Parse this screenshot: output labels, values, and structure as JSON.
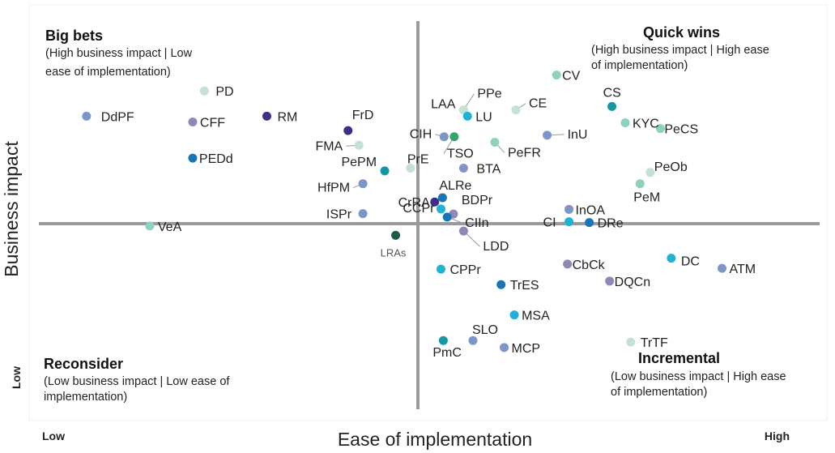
{
  "chart_data": {
    "type": "scatter",
    "xlabel": "Ease of implementation",
    "ylabel": "Business impact",
    "x_low_label": "Low",
    "x_high_label": "High",
    "y_low_label": "Low",
    "xlim": [
      0,
      100
    ],
    "ylim": [
      0,
      100
    ],
    "grid": false,
    "quadrants": {
      "top_left": {
        "title": "Big bets",
        "subtitle_lines": [
          "(High business impact | Low",
          "ease of implementation)"
        ]
      },
      "top_right": {
        "title": "Quick wins",
        "subtitle_lines": [
          "(High business impact | High ease",
          "of implementation)"
        ]
      },
      "bottom_left": {
        "title": "Reconsider",
        "subtitle_lines": [
          "(Low business impact | Low ease of",
          "implementation)"
        ]
      },
      "bottom_right": {
        "title": "Incremental",
        "subtitle_lines": [
          "(Low business impact | High ease",
          "of implementation)"
        ]
      }
    },
    "colors": {
      "navy": "#3f2f86",
      "periwinkle": "#7c96c8",
      "purple_gray": "#8e88b6",
      "teal": "#1498a6",
      "cyan": "#1fb2d6",
      "ocean": "#1a75b8",
      "mint": "#8fd1c0",
      "pale_mint": "#c3e2d3",
      "green": "#3aa36a",
      "dark_green": "#1f5a45",
      "axis": "#9a9a9a"
    },
    "points": [
      {
        "label": "PD",
        "x": 21.2,
        "y": 82.0,
        "color": "#c3e2d3"
      },
      {
        "label": "DdPF",
        "x": 6.1,
        "y": 75.5,
        "color": "#7c96c8"
      },
      {
        "label": "CFF",
        "x": 19.7,
        "y": 74.0,
        "color": "#8e88b6"
      },
      {
        "label": "RM",
        "x": 29.2,
        "y": 75.5,
        "color": "#3f2f86"
      },
      {
        "label": "PEDd",
        "x": 19.7,
        "y": 64.7,
        "color": "#1a75b8"
      },
      {
        "label": "FrD",
        "x": 39.6,
        "y": 71.8,
        "color": "#3f2f86"
      },
      {
        "label": "FMA",
        "x": 41.0,
        "y": 68.0,
        "color": "#c3e2d3"
      },
      {
        "label": "PePM",
        "x": 44.3,
        "y": 61.4,
        "color": "#1498a6"
      },
      {
        "label": "HfPM",
        "x": 41.5,
        "y": 58.1,
        "color": "#7c96c8"
      },
      {
        "label": "ISPr",
        "x": 41.5,
        "y": 50.4,
        "color": "#7c96c8"
      },
      {
        "label": "VeA",
        "x": 14.2,
        "y": 47.2,
        "color": "#8fd1c0"
      },
      {
        "label": "LRAs",
        "x": 45.7,
        "y": 44.8,
        "color": "#1f5a45"
      },
      {
        "label": "PPe",
        "x": 54.4,
        "y": 77.1,
        "color": "#c3e2d3"
      },
      {
        "label": "LAA",
        "x": 54.4,
        "y": 77.1,
        "color": "#c3e2d3"
      },
      {
        "label": "LU",
        "x": 54.9,
        "y": 75.5,
        "color": "#1fb2d6"
      },
      {
        "label": "CE",
        "x": 61.1,
        "y": 77.1,
        "color": "#c3e2d3"
      },
      {
        "label": "CIH",
        "x": 51.9,
        "y": 70.2,
        "color": "#7c96c8"
      },
      {
        "label": "TSO",
        "x": 53.2,
        "y": 70.2,
        "color": "#3aa36a"
      },
      {
        "label": "PrE",
        "x": 47.6,
        "y": 62.1,
        "color": "#c3e2d3"
      },
      {
        "label": "BTA",
        "x": 54.4,
        "y": 62.1,
        "color": "#7c96c8"
      },
      {
        "label": "ALRe",
        "x": 51.7,
        "y": 54.5,
        "color": "#1a75b8"
      },
      {
        "label": "CrRA",
        "x": 50.7,
        "y": 53.4,
        "color": "#3f2f86"
      },
      {
        "label": "CCPr",
        "x": 51.5,
        "y": 51.6,
        "color": "#1fb2d6"
      },
      {
        "label": "BDPr",
        "x": 53.1,
        "y": 50.3,
        "color": "#8e88b6"
      },
      {
        "label": "CIIn",
        "x": 52.3,
        "y": 49.5,
        "color": "#1a75b8"
      },
      {
        "label": "LDD",
        "x": 54.4,
        "y": 45.9,
        "color": "#8e88b6"
      },
      {
        "label": "CV",
        "x": 66.3,
        "y": 86.1,
        "color": "#8fd1c0"
      },
      {
        "label": "CS",
        "x": 73.4,
        "y": 78.0,
        "color": "#1498a6"
      },
      {
        "label": "KYC",
        "x": 75.1,
        "y": 73.8,
        "color": "#8fd1c0"
      },
      {
        "label": "PeCS",
        "x": 79.6,
        "y": 72.3,
        "color": "#8fd1c0"
      },
      {
        "label": "InU",
        "x": 65.1,
        "y": 70.6,
        "color": "#7c96c8"
      },
      {
        "label": "PeFR",
        "x": 58.4,
        "y": 68.8,
        "color": "#8fd1c0"
      },
      {
        "label": "PeOb",
        "x": 78.3,
        "y": 61.0,
        "color": "#c3e2d3"
      },
      {
        "label": "PeM",
        "x": 77.0,
        "y": 58.1,
        "color": "#8fd1c0"
      },
      {
        "label": "InOA",
        "x": 67.9,
        "y": 51.5,
        "color": "#7c96c8"
      },
      {
        "label": "CI",
        "x": 67.9,
        "y": 48.3,
        "color": "#1fb2d6"
      },
      {
        "label": "DRe",
        "x": 70.5,
        "y": 48.1,
        "color": "#1a75b8"
      },
      {
        "label": "DC",
        "x": 81.0,
        "y": 38.9,
        "color": "#1fb2d6"
      },
      {
        "label": "ATM",
        "x": 87.5,
        "y": 36.3,
        "color": "#7c96c8"
      },
      {
        "label": "CbCk",
        "x": 67.7,
        "y": 37.4,
        "color": "#8e88b6"
      },
      {
        "label": "DQCn",
        "x": 73.1,
        "y": 33.0,
        "color": "#8e88b6"
      },
      {
        "label": "CPPr",
        "x": 51.5,
        "y": 36.1,
        "color": "#1fb2d6"
      },
      {
        "label": "TrES",
        "x": 59.2,
        "y": 32.1,
        "color": "#1a75b8"
      },
      {
        "label": "MSA",
        "x": 60.9,
        "y": 24.3,
        "color": "#1fb2d6"
      },
      {
        "label": "SLO",
        "x": 55.6,
        "y": 17.7,
        "color": "#7c96c8"
      },
      {
        "label": "PmC",
        "x": 51.8,
        "y": 17.7,
        "color": "#1498a6"
      },
      {
        "label": "MCP",
        "x": 59.6,
        "y": 15.9,
        "color": "#7c96c8"
      },
      {
        "label": "TrTF",
        "x": 75.8,
        "y": 17.3,
        "color": "#c3e2d3"
      }
    ]
  }
}
